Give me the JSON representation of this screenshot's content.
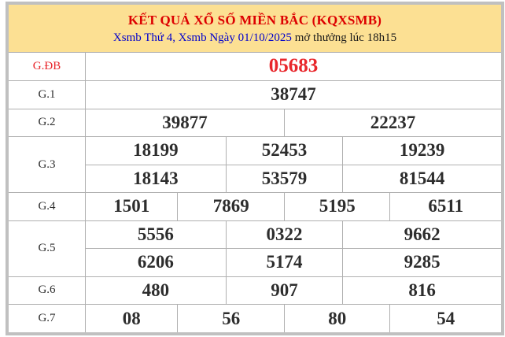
{
  "header": {
    "title": "KẾT QUẢ XỔ SỐ MIỀN BẮC (KQXSMB)",
    "draw_info_link": "Xsmb Thứ 4, Xsmb Ngày 01/10/2025",
    "draw_info_rest": " mở thưởng lúc 18h15"
  },
  "results": {
    "rows": [
      {
        "label": "G.ĐB",
        "highlight": true,
        "lines": [
          [
            "05683"
          ]
        ]
      },
      {
        "label": "G.1",
        "highlight": false,
        "lines": [
          [
            "38747"
          ]
        ]
      },
      {
        "label": "G.2",
        "highlight": false,
        "lines": [
          [
            "39877",
            "22237"
          ]
        ]
      },
      {
        "label": "G.3",
        "highlight": false,
        "lines": [
          [
            "18199",
            "52453",
            "19239"
          ],
          [
            "18143",
            "53579",
            "81544"
          ]
        ]
      },
      {
        "label": "G.4",
        "highlight": false,
        "lines": [
          [
            "1501",
            "7869",
            "5195",
            "6511"
          ]
        ]
      },
      {
        "label": "G.5",
        "highlight": false,
        "lines": [
          [
            "5556",
            "0322",
            "9662"
          ],
          [
            "6206",
            "5174",
            "9285"
          ]
        ]
      },
      {
        "label": "G.6",
        "highlight": false,
        "lines": [
          [
            "480",
            "907",
            "816"
          ]
        ]
      },
      {
        "label": "G.7",
        "highlight": false,
        "lines": [
          [
            "08",
            "56",
            "80",
            "54"
          ]
        ]
      }
    ]
  },
  "colors": {
    "header_bg": "#FCE093",
    "title_red": "#DD0000",
    "link_blue": "#0000CC",
    "special_red": "#E8262B",
    "value_dark": "#2D2D2D",
    "outer_border": "#C0C0C0",
    "inner_border": "#B0B0B0"
  }
}
